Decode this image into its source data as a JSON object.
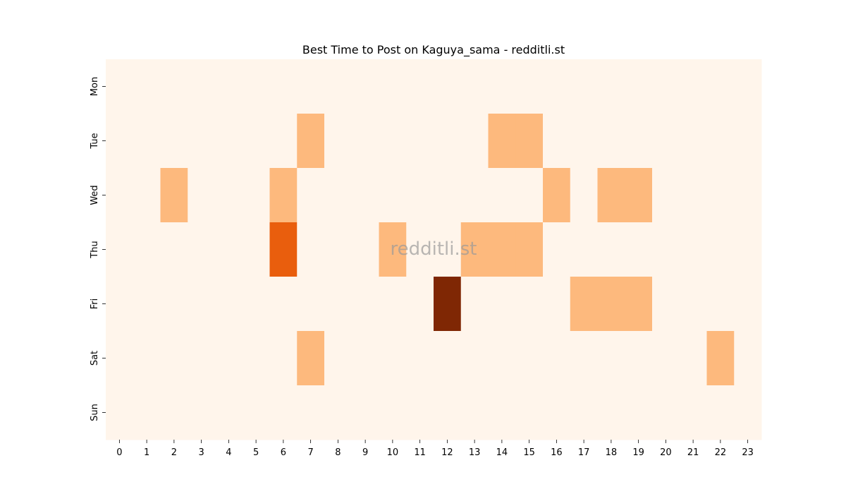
{
  "chart_data": {
    "type": "heatmap",
    "title": "Best Time to Post on Kaguya_sama - redditli.st",
    "watermark": "redditli.st",
    "xlabel": "",
    "ylabel": "",
    "x_categories": [
      "0",
      "1",
      "2",
      "3",
      "4",
      "5",
      "6",
      "7",
      "8",
      "9",
      "10",
      "11",
      "12",
      "13",
      "14",
      "15",
      "16",
      "17",
      "18",
      "19",
      "20",
      "21",
      "22",
      "23"
    ],
    "y_categories": [
      "Mon",
      "Tue",
      "Wed",
      "Thu",
      "Fri",
      "Sat",
      "Sun"
    ],
    "colormap": "Oranges",
    "grid": false,
    "legend": "none",
    "values": [
      [
        0,
        0,
        0,
        0,
        0,
        0,
        0,
        0,
        0,
        0,
        0,
        0,
        0,
        0,
        0,
        0,
        0,
        0,
        0,
        0,
        0,
        0,
        0,
        0
      ],
      [
        0,
        0,
        0,
        0,
        0,
        0,
        0,
        1,
        0,
        0,
        0,
        0,
        0,
        0,
        1,
        1,
        0,
        0,
        0,
        0,
        0,
        0,
        0,
        0
      ],
      [
        0,
        0,
        1,
        0,
        0,
        0,
        1,
        0,
        0,
        0,
        0,
        0,
        0,
        0,
        0,
        0,
        1,
        0,
        1,
        1,
        0,
        0,
        0,
        0
      ],
      [
        0,
        0,
        0,
        0,
        0,
        0,
        2,
        0,
        0,
        0,
        1,
        0,
        0,
        1,
        1,
        1,
        0,
        0,
        0,
        0,
        0,
        0,
        0,
        0
      ],
      [
        0,
        0,
        0,
        0,
        0,
        0,
        0,
        0,
        0,
        0,
        0,
        0,
        3,
        0,
        0,
        0,
        0,
        1,
        1,
        1,
        0,
        0,
        0,
        0
      ],
      [
        0,
        0,
        0,
        0,
        0,
        0,
        0,
        1,
        0,
        0,
        0,
        0,
        0,
        0,
        0,
        0,
        0,
        0,
        0,
        0,
        0,
        0,
        1,
        0
      ],
      [
        0,
        0,
        0,
        0,
        0,
        0,
        0,
        0,
        0,
        0,
        0,
        0,
        0,
        0,
        0,
        0,
        0,
        0,
        0,
        0,
        0,
        0,
        0,
        0
      ]
    ],
    "colors": {
      "0": "#fff5eb",
      "1": "#fdb97d",
      "2": "#e95e0d",
      "3": "#7f2704"
    }
  }
}
